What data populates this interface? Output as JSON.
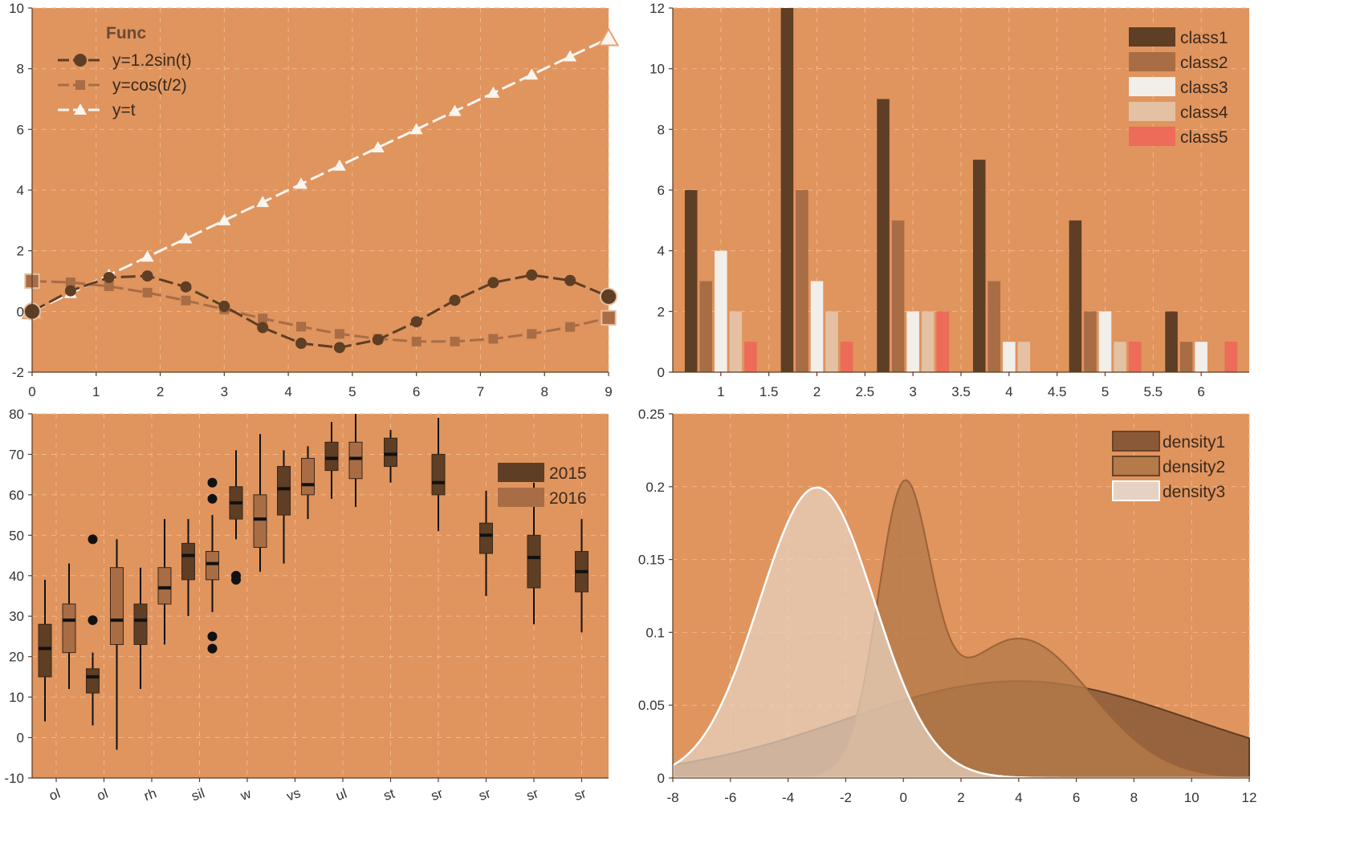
{
  "colors": {
    "panel_bg": "#e0945e",
    "dark_brown": "#5e3e24",
    "mid_brown": "#a86d45",
    "cream": "#f2eeea",
    "light_tan": "#e3c1a2",
    "coral": "#ec6b59",
    "density1": "#8a5a38",
    "density2": "#b47a4a",
    "density3": "#e6d2c2",
    "line_white": "#fbf5ef"
  },
  "chart_data": [
    {
      "type": "line",
      "legend_title": "Func",
      "legend_position": "top-left",
      "grid": true,
      "xlim": [
        0,
        9
      ],
      "ylim": [
        -2,
        10
      ],
      "xticks": [
        "0",
        "1",
        "2",
        "3",
        "4",
        "5",
        "6",
        "7",
        "8",
        "9"
      ],
      "yticks": [
        "-2",
        "0",
        "2",
        "4",
        "6",
        "8",
        "10"
      ],
      "x": [
        0,
        0.6,
        1.2,
        1.8,
        2.4,
        3.0,
        3.6,
        4.2,
        4.8,
        5.4,
        6.0,
        6.6,
        7.2,
        7.8,
        8.4,
        9.0
      ],
      "series": [
        {
          "name": "y=1.2sin(t)",
          "marker": "circle",
          "color": "#5e3e24",
          "values": [
            0.0,
            0.68,
            1.12,
            1.17,
            0.81,
            0.17,
            -0.53,
            -1.05,
            -1.19,
            -0.93,
            -0.34,
            0.37,
            0.95,
            1.2,
            1.02,
            0.49
          ]
        },
        {
          "name": "y=cos(t/2)",
          "marker": "square",
          "color": "#a86d45",
          "values": [
            1.0,
            0.96,
            0.83,
            0.62,
            0.36,
            0.07,
            -0.23,
            -0.5,
            -0.74,
            -0.9,
            -0.99,
            -0.99,
            -0.9,
            -0.74,
            -0.51,
            -0.21
          ]
        },
        {
          "name": "y=t",
          "marker": "triangle",
          "color": "#fbf5ef",
          "values": [
            0.0,
            0.6,
            1.2,
            1.8,
            2.4,
            3.0,
            3.6,
            4.2,
            4.8,
            5.4,
            6.0,
            6.6,
            7.2,
            7.8,
            8.4,
            9.0
          ]
        }
      ]
    },
    {
      "type": "bar",
      "legend_position": "top-right",
      "grid": true,
      "xlim": [
        0.5,
        6.5
      ],
      "ylim": [
        0,
        12
      ],
      "xticks": [
        "1",
        "1.5",
        "2",
        "2.5",
        "3",
        "3.5",
        "4",
        "4.5",
        "5",
        "5.5",
        "6"
      ],
      "yticks": [
        "0",
        "2",
        "4",
        "6",
        "8",
        "10",
        "12"
      ],
      "categories": [
        1,
        2,
        3,
        4,
        5,
        6
      ],
      "series": [
        {
          "name": "class1",
          "color": "#5e3e24",
          "values": [
            6,
            12,
            9,
            7,
            5,
            2
          ]
        },
        {
          "name": "class2",
          "color": "#a86d45",
          "values": [
            3,
            6,
            5,
            3,
            2,
            1
          ]
        },
        {
          "name": "class3",
          "color": "#f2eeea",
          "values": [
            4,
            3,
            2,
            1,
            2,
            1
          ]
        },
        {
          "name": "class4",
          "color": "#e3c1a2",
          "values": [
            2,
            2,
            2,
            1,
            1,
            0
          ]
        },
        {
          "name": "class5",
          "color": "#ec6b59",
          "values": [
            1,
            1,
            2,
            0,
            1,
            1
          ]
        }
      ]
    },
    {
      "type": "box",
      "legend_position": "top-right",
      "grid": true,
      "ylim": [
        -10,
        80
      ],
      "yticks": [
        "-10",
        "0",
        "10",
        "20",
        "30",
        "40",
        "50",
        "60",
        "70",
        "80"
      ],
      "xtick_labels": [
        "ol",
        "ol",
        "rh",
        "sil",
        "w",
        "vs",
        "ul",
        "st",
        "sr",
        "sr",
        "sr",
        "sr"
      ],
      "series": [
        {
          "name": "2015",
          "color": "#5e3e24"
        },
        {
          "name": "2016",
          "color": "#a86d45"
        }
      ],
      "boxes": [
        {
          "group": 0,
          "series": "2015",
          "whisker_low": 4,
          "q1": 15,
          "median": 22,
          "q3": 28,
          "whisker_high": 39,
          "outliers": []
        },
        {
          "group": 0,
          "series": "2016",
          "whisker_low": 12,
          "q1": 21,
          "median": 29,
          "q3": 33,
          "whisker_high": 43,
          "outliers": []
        },
        {
          "group": 1,
          "series": "2015",
          "whisker_low": 3,
          "q1": 11,
          "median": 15,
          "q3": 17,
          "whisker_high": 21,
          "outliers": [
            29,
            49
          ]
        },
        {
          "group": 1,
          "series": "2016",
          "whisker_low": -3,
          "q1": 23,
          "median": 29,
          "q3": 42,
          "whisker_high": 49,
          "outliers": []
        },
        {
          "group": 2,
          "series": "2015",
          "whisker_low": 12,
          "q1": 23,
          "median": 29,
          "q3": 33,
          "whisker_high": 42,
          "outliers": []
        },
        {
          "group": 2,
          "series": "2016",
          "whisker_low": 23,
          "q1": 33,
          "median": 37,
          "q3": 42,
          "whisker_high": 54,
          "outliers": []
        },
        {
          "group": 3,
          "series": "2015",
          "whisker_low": 30,
          "q1": 39,
          "median": 45,
          "q3": 48,
          "whisker_high": 54,
          "outliers": []
        },
        {
          "group": 3,
          "series": "2016",
          "whisker_low": 31,
          "q1": 39,
          "median": 43,
          "q3": 46,
          "whisker_high": 55,
          "outliers": [
            22,
            25,
            59,
            63
          ]
        },
        {
          "group": 4,
          "series": "2015",
          "whisker_low": 49,
          "q1": 54,
          "median": 58,
          "q3": 62,
          "whisker_high": 71,
          "outliers": [
            39,
            40
          ]
        },
        {
          "group": 4,
          "series": "2016",
          "whisker_low": 41,
          "q1": 47,
          "median": 54,
          "q3": 60,
          "whisker_high": 75,
          "outliers": []
        },
        {
          "group": 5,
          "series": "2015",
          "whisker_low": 43,
          "q1": 55,
          "median": 61.5,
          "q3": 67,
          "whisker_high": 71,
          "outliers": []
        },
        {
          "group": 5,
          "series": "2016",
          "whisker_low": 54,
          "q1": 60,
          "median": 62.5,
          "q3": 69,
          "whisker_high": 72,
          "outliers": []
        },
        {
          "group": 6,
          "series": "2015",
          "whisker_low": 59,
          "q1": 66,
          "median": 69,
          "q3": 73,
          "whisker_high": 78,
          "outliers": []
        },
        {
          "group": 6,
          "series": "2016",
          "whisker_low": 57,
          "q1": 64,
          "median": 69,
          "q3": 73,
          "whisker_high": 80,
          "outliers": []
        },
        {
          "group": 7,
          "series": "2015",
          "whisker_low": 63,
          "q1": 67,
          "median": 70,
          "q3": 74,
          "whisker_high": 76,
          "outliers": []
        },
        {
          "group": 8,
          "series": "2015",
          "whisker_low": 51,
          "q1": 60,
          "median": 63,
          "q3": 70,
          "whisker_high": 79,
          "outliers": []
        },
        {
          "group": 9,
          "series": "2015",
          "whisker_low": 35,
          "q1": 45.5,
          "median": 50,
          "q3": 53,
          "whisker_high": 61,
          "outliers": []
        },
        {
          "group": 10,
          "series": "2015",
          "whisker_low": 28,
          "q1": 37,
          "median": 44.5,
          "q3": 50,
          "whisker_high": 63,
          "outliers": []
        },
        {
          "group": 11,
          "series": "2015",
          "whisker_low": 26,
          "q1": 36,
          "median": 41,
          "q3": 46,
          "whisker_high": 54,
          "outliers": []
        }
      ]
    },
    {
      "type": "area",
      "legend_position": "top-right",
      "grid": true,
      "xlim": [
        -8,
        12
      ],
      "ylim": [
        0,
        0.25
      ],
      "xticks": [
        "-8",
        "-6",
        "-4",
        "-2",
        "0",
        "2",
        "4",
        "6",
        "8",
        "10",
        "12"
      ],
      "yticks": [
        "0",
        "0.05",
        "0.1",
        "0.15",
        "0.2",
        "0.25"
      ],
      "series": [
        {
          "name": "density1",
          "color": "#8a5a38",
          "components": [
            {
              "weight": 1.0,
              "mean": 4,
              "sd": 6
            }
          ]
        },
        {
          "name": "density2",
          "color": "#b47a4a",
          "components": [
            {
              "weight": 0.4,
              "mean": 0,
              "sd": 0.9
            },
            {
              "weight": 0.6,
              "mean": 4,
              "sd": 2.5
            }
          ]
        },
        {
          "name": "density3",
          "color": "#e6d2c2",
          "components": [
            {
              "weight": 1.0,
              "mean": -3,
              "sd": 2
            }
          ]
        }
      ]
    }
  ]
}
